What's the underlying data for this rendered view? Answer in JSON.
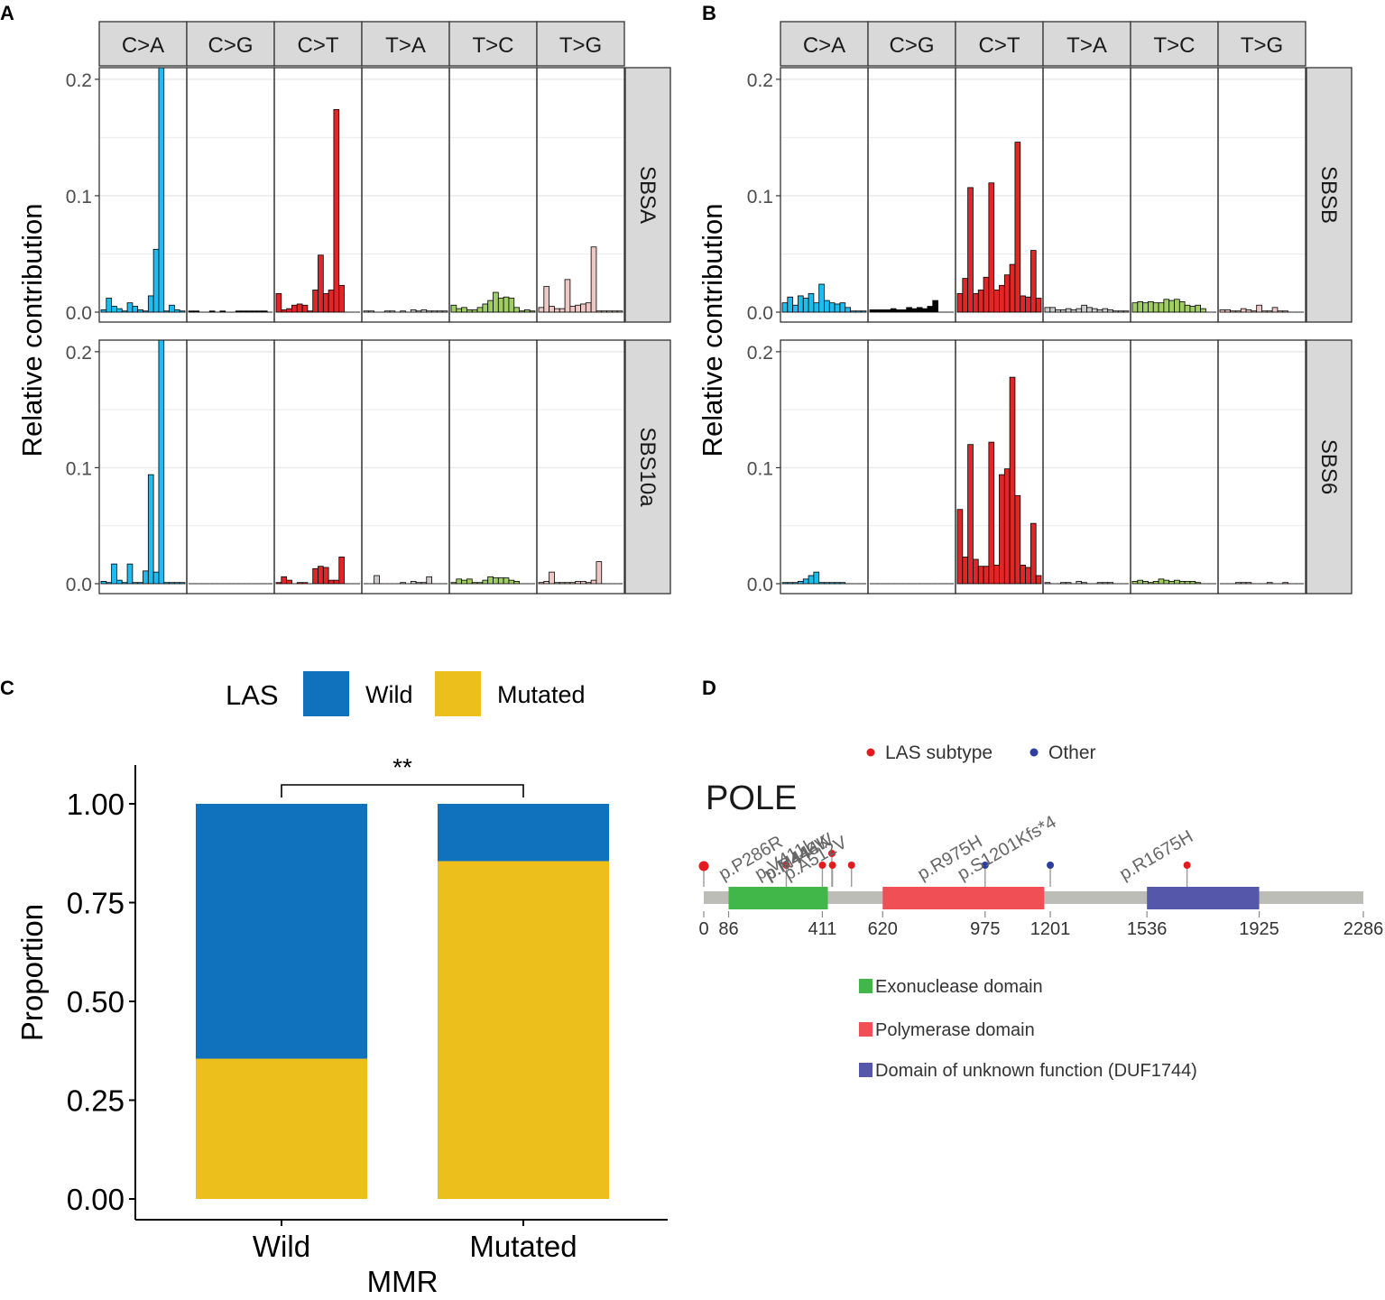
{
  "colors": {
    "C>A": "#1ebcef",
    "C>G": "#000000",
    "C>T": "#e22628",
    "T>A": "#cccacb",
    "T>C": "#a0ce63",
    "T>G": "#edc8c5",
    "wild": "#1072bd",
    "mutated": "#ecbf1d",
    "exo": "#41b749",
    "pol": "#ef4f55",
    "duf": "#5557aa",
    "las": "#e41a1c",
    "other": "#2e3e9e",
    "backbone": "#bdbdb7",
    "strip": "#d9d9d9"
  },
  "panels": {
    "A": {
      "label": "A"
    },
    "B": {
      "label": "B"
    },
    "C": {
      "label": "C"
    },
    "D": {
      "label": "D"
    }
  },
  "chart_data": [
    {
      "id": "A",
      "type": "bar",
      "ylabel": "Relative contribution",
      "ylim": [
        0,
        0.2
      ],
      "yticks": [
        0.0,
        0.1,
        0.2
      ],
      "ytick_labels": [
        "0.0",
        "0.1",
        "0.2"
      ],
      "categories": [
        "C>A",
        "C>G",
        "C>T",
        "T>A",
        "T>C",
        "T>G"
      ],
      "series": [
        {
          "name": "SBSA",
          "values": {
            "C>A": [
              0.002,
              0.012,
              0.005,
              0.003,
              0.001,
              0.008,
              0.005,
              0.002,
              0.001,
              0.014,
              0.054,
              0.21,
              0.001,
              0.006,
              0.002,
              0.001
            ],
            "C>G": [
              0.001,
              0.001,
              0.0,
              0.0,
              0.001,
              0.0,
              0.001,
              0.0,
              0.0,
              0.001,
              0.001,
              0.001,
              0.001,
              0.001,
              0.001,
              0.0
            ],
            "C>T": [
              0.016,
              0.002,
              0.003,
              0.006,
              0.007,
              0.006,
              0.001,
              0.019,
              0.049,
              0.016,
              0.019,
              0.174,
              0.023,
              0.0,
              0.0,
              0.0
            ],
            "T>A": [
              0.001,
              0.001,
              0.0,
              0.0,
              0.001,
              0.001,
              0.0,
              0.001,
              0.0,
              0.002,
              0.001,
              0.002,
              0.001,
              0.001,
              0.001,
              0.001
            ],
            "T>C": [
              0.006,
              0.003,
              0.004,
              0.002,
              0.002,
              0.004,
              0.007,
              0.01,
              0.017,
              0.012,
              0.013,
              0.012,
              0.004,
              0.001,
              0.002,
              0.001
            ],
            "T>G": [
              0.004,
              0.022,
              0.005,
              0.003,
              0.003,
              0.028,
              0.005,
              0.006,
              0.007,
              0.008,
              0.056,
              0.001,
              0.001,
              0.001,
              0.001,
              0.001
            ]
          }
        },
        {
          "name": "SBS10a",
          "values": {
            "C>A": [
              0.002,
              0.001,
              0.017,
              0.003,
              0.001,
              0.017,
              0.001,
              0.001,
              0.011,
              0.094,
              0.01,
              0.21,
              0.001,
              0.001,
              0.001,
              0.001
            ],
            "C>G": [
              0.0,
              0.0,
              0.0,
              0.0,
              0.0,
              0.0,
              0.0,
              0.0,
              0.0,
              0.0,
              0.0,
              0.0,
              0.0,
              0.0,
              0.0,
              0.0
            ],
            "C>T": [
              0.001,
              0.006,
              0.003,
              0.0,
              0.001,
              0.001,
              0.0,
              0.013,
              0.015,
              0.014,
              0.003,
              0.003,
              0.023,
              0.0,
              0.0,
              0.0
            ],
            "T>A": [
              0.0,
              0.0,
              0.007,
              0.0,
              0.0,
              0.0,
              0.0,
              0.001,
              0.0,
              0.002,
              0.001,
              0.001,
              0.006,
              0.0,
              0.0,
              0.0
            ],
            "T>C": [
              0.001,
              0.004,
              0.003,
              0.004,
              0.001,
              0.001,
              0.003,
              0.006,
              0.005,
              0.005,
              0.005,
              0.003,
              0.002,
              0.0,
              0.0,
              0.0
            ],
            "T>G": [
              0.001,
              0.002,
              0.01,
              0.001,
              0.001,
              0.001,
              0.001,
              0.002,
              0.002,
              0.001,
              0.003,
              0.019,
              0.0,
              0.0,
              0.0,
              0.0
            ]
          }
        }
      ]
    },
    {
      "id": "B",
      "type": "bar",
      "ylabel": "Relative contribution",
      "ylim": [
        0,
        0.2
      ],
      "yticks": [
        0.0,
        0.1,
        0.2
      ],
      "ytick_labels": [
        "0.0",
        "0.1",
        "0.2"
      ],
      "categories": [
        "C>A",
        "C>G",
        "C>T",
        "T>A",
        "T>C",
        "T>G"
      ],
      "series": [
        {
          "name": "SBSB",
          "values": {
            "C>A": [
              0.008,
              0.013,
              0.006,
              0.014,
              0.012,
              0.016,
              0.008,
              0.024,
              0.01,
              0.008,
              0.007,
              0.008,
              0.004,
              0.001,
              0.001,
              0.001
            ],
            "C>G": [
              0.002,
              0.002,
              0.002,
              0.002,
              0.003,
              0.002,
              0.002,
              0.004,
              0.003,
              0.004,
              0.003,
              0.005,
              0.01,
              0.0,
              0.0,
              0.0
            ],
            "C>T": [
              0.016,
              0.029,
              0.107,
              0.016,
              0.019,
              0.03,
              0.111,
              0.019,
              0.023,
              0.032,
              0.041,
              0.146,
              0.014,
              0.013,
              0.053,
              0.012
            ],
            "T>A": [
              0.004,
              0.004,
              0.002,
              0.002,
              0.003,
              0.002,
              0.003,
              0.006,
              0.004,
              0.003,
              0.002,
              0.003,
              0.002,
              0.001,
              0.001,
              0.001
            ],
            "T>C": [
              0.008,
              0.009,
              0.008,
              0.009,
              0.008,
              0.008,
              0.011,
              0.01,
              0.011,
              0.009,
              0.006,
              0.005,
              0.006,
              0.003,
              0.0,
              0.0
            ],
            "T>G": [
              0.002,
              0.002,
              0.001,
              0.001,
              0.003,
              0.002,
              0.001,
              0.006,
              0.001,
              0.001,
              0.004,
              0.001,
              0.001,
              0.0,
              0.0,
              0.0
            ]
          }
        },
        {
          "name": "SBS6",
          "values": {
            "C>A": [
              0.001,
              0.001,
              0.001,
              0.002,
              0.004,
              0.007,
              0.01,
              0.001,
              0.001,
              0.001,
              0.001,
              0.001,
              0.0,
              0.0,
              0.0,
              0.0
            ],
            "C>G": [
              0.0,
              0.0,
              0.0,
              0.0,
              0.0,
              0.0,
              0.0,
              0.0,
              0.0,
              0.0,
              0.0,
              0.0,
              0.0,
              0.0,
              0.0,
              0.0
            ],
            "C>T": [
              0.064,
              0.023,
              0.12,
              0.021,
              0.015,
              0.015,
              0.122,
              0.016,
              0.094,
              0.099,
              0.178,
              0.076,
              0.016,
              0.014,
              0.052,
              0.007
            ],
            "T>A": [
              0.001,
              0.0,
              0.0,
              0.001,
              0.001,
              0.0,
              0.002,
              0.001,
              0.0,
              0.0,
              0.001,
              0.001,
              0.001,
              0.0,
              0.0,
              0.0
            ],
            "T>C": [
              0.002,
              0.003,
              0.002,
              0.001,
              0.002,
              0.004,
              0.003,
              0.002,
              0.003,
              0.002,
              0.002,
              0.002,
              0.001,
              0.0,
              0.0,
              0.0
            ],
            "T>G": [
              0.0,
              0.0,
              0.0,
              0.001,
              0.001,
              0.001,
              0.0,
              0.0,
              0.0,
              0.001,
              0.0,
              0.0,
              0.001,
              0.0,
              0.0,
              0.0
            ]
          }
        }
      ]
    },
    {
      "id": "C",
      "type": "bar",
      "stacked": true,
      "legend_title": "LAS",
      "legend_entries": [
        "Wild",
        "Mutated"
      ],
      "categories": [
        "Wild",
        "Mutated"
      ],
      "xlabel": "MMR",
      "ylabel": "Proportion",
      "ylim": [
        0,
        1
      ],
      "yticks": [
        0.0,
        0.25,
        0.5,
        0.75,
        1.0
      ],
      "ytick_labels": [
        "0.00",
        "0.25",
        "0.50",
        "0.75",
        "1.00"
      ],
      "series": [
        {
          "name": "Mutated",
          "values": [
            0.355,
            0.855
          ]
        },
        {
          "name": "Wild",
          "values": [
            0.645,
            0.145
          ]
        }
      ],
      "significance": "**"
    },
    {
      "id": "D",
      "type": "lollipop",
      "gene": "POLE",
      "protein_length": 2286,
      "legend_entries": [
        "LAS subtype",
        "Other"
      ],
      "domains": [
        {
          "name": "Exonuclease domain",
          "start": 86,
          "end": 430,
          "color_key": "exo"
        },
        {
          "name": "Polymerase domain",
          "start": 620,
          "end": 1180,
          "color_key": "pol"
        },
        {
          "name": "Domain of unknown function (DUF1744)",
          "start": 1536,
          "end": 1925,
          "color_key": "duf"
        }
      ],
      "ticks": [
        0,
        86,
        411,
        620,
        975,
        1201,
        1536,
        1925,
        2286
      ],
      "tick_labels": [
        "0",
        "86",
        "411",
        "620",
        "975",
        "1201",
        "1536",
        "1925",
        "2286"
      ],
      "mutations": [
        {
          "pos": 0,
          "label": "",
          "type": "las",
          "height": 1
        },
        {
          "pos": 286,
          "label": "p.P286R",
          "type": "las",
          "height": 1
        },
        {
          "pos": 411,
          "label": "p.V411L",
          "type": "las",
          "height": 1
        },
        {
          "pos": 444,
          "label": "p.M444K",
          "type": "las",
          "height": 1
        },
        {
          "pos": 446,
          "label": "p.R446W",
          "type": "las",
          "height": 1
        },
        {
          "pos": 512,
          "label": "p.A512V",
          "type": "las",
          "height": 1
        },
        {
          "pos": 975,
          "label": "p.R975H",
          "type": "other",
          "height": 1
        },
        {
          "pos": 1201,
          "label": "p.S1201Kfs*4",
          "type": "other",
          "height": 1
        },
        {
          "pos": 1675,
          "label": "p.R1675H",
          "type": "las",
          "height": 1
        }
      ]
    }
  ]
}
